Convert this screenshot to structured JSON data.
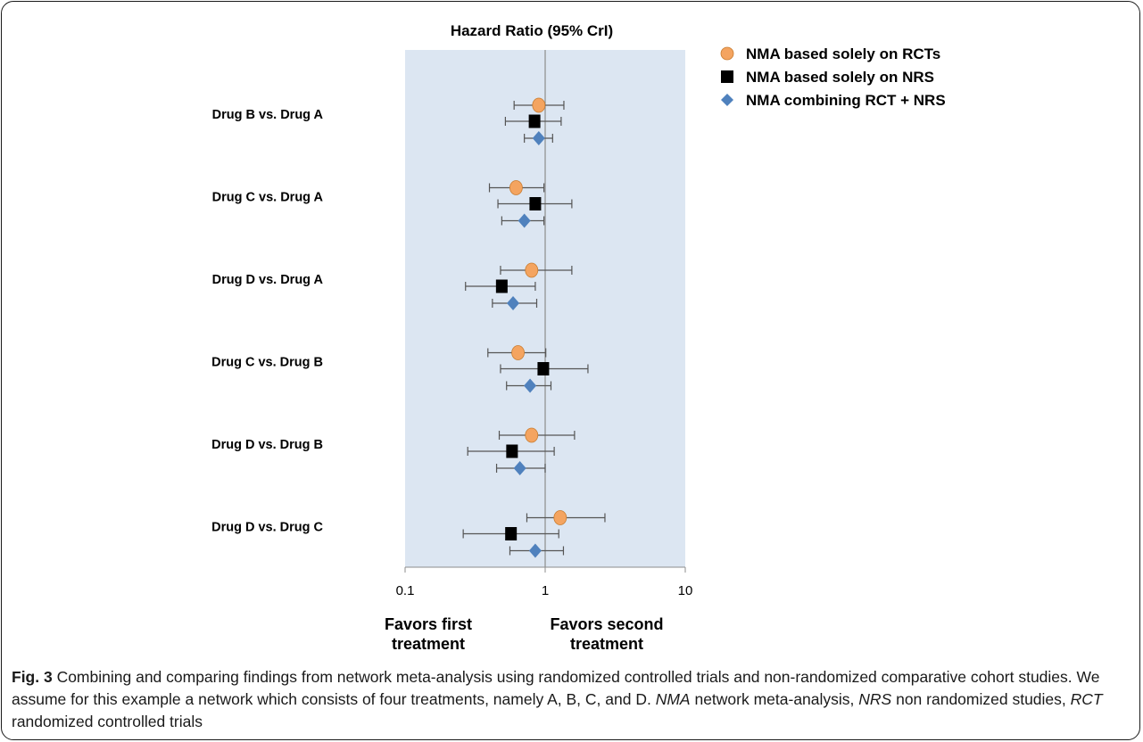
{
  "chart_data": {
    "type": "forest-plot",
    "title": "Hazard Ratio (95% CrI)",
    "x_scale": "log10",
    "xlim": [
      0.1,
      10
    ],
    "x_ticks": [
      "0.1",
      "1",
      "10"
    ],
    "reference_line": 1,
    "favors_left": [
      "Favors first",
      "treatment"
    ],
    "favors_right": [
      "Favors second",
      "treatment"
    ],
    "legend_position": "top-right",
    "categories": [
      "Drug B vs. Drug A",
      "Drug C vs. Drug A",
      "Drug D vs. Drug A",
      "Drug C vs. Drug B",
      "Drug D vs. Drug B",
      "Drug D vs. Drug C"
    ],
    "series": [
      {
        "name": "NMA based solely on RCTs",
        "marker": "circle",
        "color": "#F4A460",
        "estimates": [
          0.9,
          0.62,
          0.8,
          0.64,
          0.8,
          1.28
        ],
        "lower": [
          0.6,
          0.4,
          0.48,
          0.39,
          0.47,
          0.74
        ],
        "upper": [
          1.36,
          0.98,
          1.55,
          1.01,
          1.62,
          2.67
        ]
      },
      {
        "name": "NMA based solely on NRS",
        "marker": "square",
        "color": "#000000",
        "estimates": [
          0.84,
          0.85,
          0.49,
          0.97,
          0.58,
          0.57
        ],
        "lower": [
          0.52,
          0.46,
          0.27,
          0.48,
          0.28,
          0.26
        ],
        "upper": [
          1.3,
          1.55,
          0.85,
          2.02,
          1.16,
          1.25
        ]
      },
      {
        "name": "NMA combining RCT + NRS",
        "marker": "diamond",
        "color": "#4F81BD",
        "estimates": [
          0.9,
          0.71,
          0.59,
          0.78,
          0.66,
          0.85
        ],
        "lower": [
          0.71,
          0.49,
          0.42,
          0.53,
          0.45,
          0.56
        ],
        "upper": [
          1.13,
          0.98,
          0.87,
          1.1,
          1.0,
          1.35
        ]
      }
    ]
  },
  "caption": {
    "fig_label": "Fig. 3",
    "text_1": " Combining and comparing findings from network meta-analysis using randomized controlled trials and non-randomized comparative cohort studies. We assume for this example a network which consists of four treatments, namely A, B, C, and D. ",
    "abbr_nma": "NMA",
    "text_2": " network meta-analysis, ",
    "abbr_nrs": "NRS",
    "text_3": " non randomized studies, ",
    "abbr_rct": "RCT",
    "text_4": " randomized controlled trials"
  }
}
